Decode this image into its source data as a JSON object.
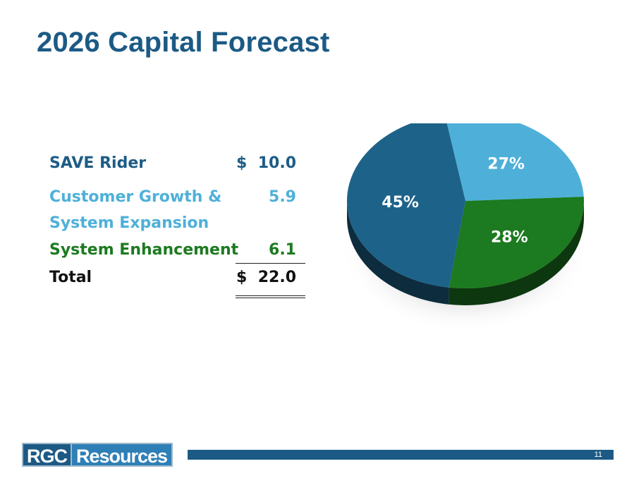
{
  "title": "2026 Capital Forecast",
  "table": {
    "rows": [
      {
        "label": "SAVE Rider",
        "dollar": "$",
        "value": "10.0",
        "color": "#1d5c86"
      },
      {
        "label_line1": "Customer Growth &",
        "label_line2": "System Expansion",
        "value": "5.9",
        "color": "#4eb0d9"
      },
      {
        "label": "System Enhancement",
        "value": "6.1",
        "color": "#1c7a20"
      },
      {
        "label": "Total",
        "dollar": "$",
        "value": "22.0",
        "color": "#111111"
      }
    ]
  },
  "chart_data": {
    "type": "pie",
    "slices": [
      {
        "label": "27%",
        "value": 27,
        "color": "#4eb0d9"
      },
      {
        "label": "28%",
        "value": 28,
        "color": "#1c7a20"
      },
      {
        "label": "45%",
        "value": 45,
        "color": "#1d6289"
      }
    ],
    "start_angle_deg": -100,
    "three_d": true
  },
  "footer": {
    "logo_left": "RGC",
    "logo_right": "Resources",
    "page_number": "11",
    "bar_color": "#1c5a85"
  }
}
